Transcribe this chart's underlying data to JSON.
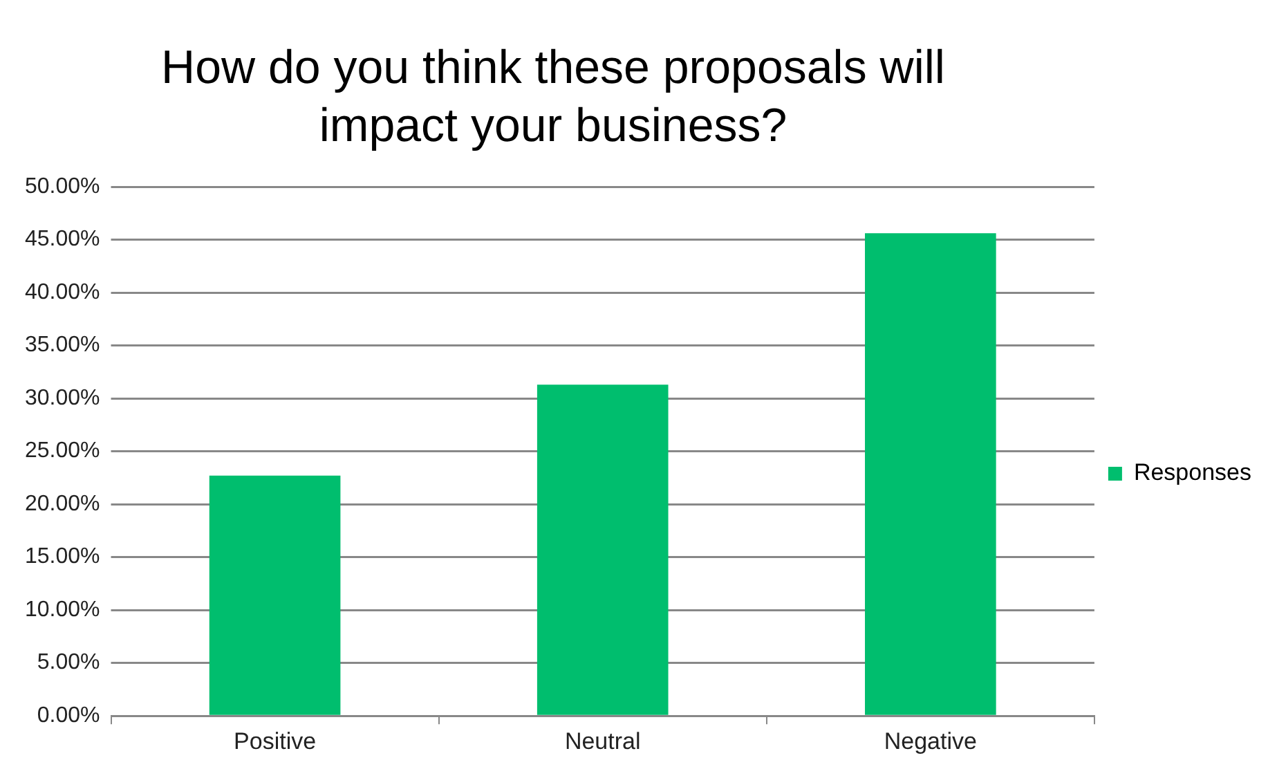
{
  "chart_data": {
    "type": "bar",
    "title": "How do you think these proposals will impact your business?",
    "categories": [
      "Positive",
      "Neutral",
      "Negative"
    ],
    "series": [
      {
        "name": "Responses",
        "color": "#00be6e",
        "values": [
          22.7,
          31.3,
          45.6
        ]
      }
    ],
    "ylim": [
      0,
      50
    ],
    "yticks": [
      {
        "value": 0,
        "label": "0.00%"
      },
      {
        "value": 5,
        "label": "5.00%"
      },
      {
        "value": 10,
        "label": "10.00%"
      },
      {
        "value": 15,
        "label": "15.00%"
      },
      {
        "value": 20,
        "label": "20.00%"
      },
      {
        "value": 25,
        "label": "25.00%"
      },
      {
        "value": 30,
        "label": "30.00%"
      },
      {
        "value": 35,
        "label": "35.00%"
      },
      {
        "value": 40,
        "label": "40.00%"
      },
      {
        "value": 45,
        "label": "45.00%"
      },
      {
        "value": 50,
        "label": "50.00%"
      }
    ],
    "grid": "y",
    "legend": "right"
  }
}
